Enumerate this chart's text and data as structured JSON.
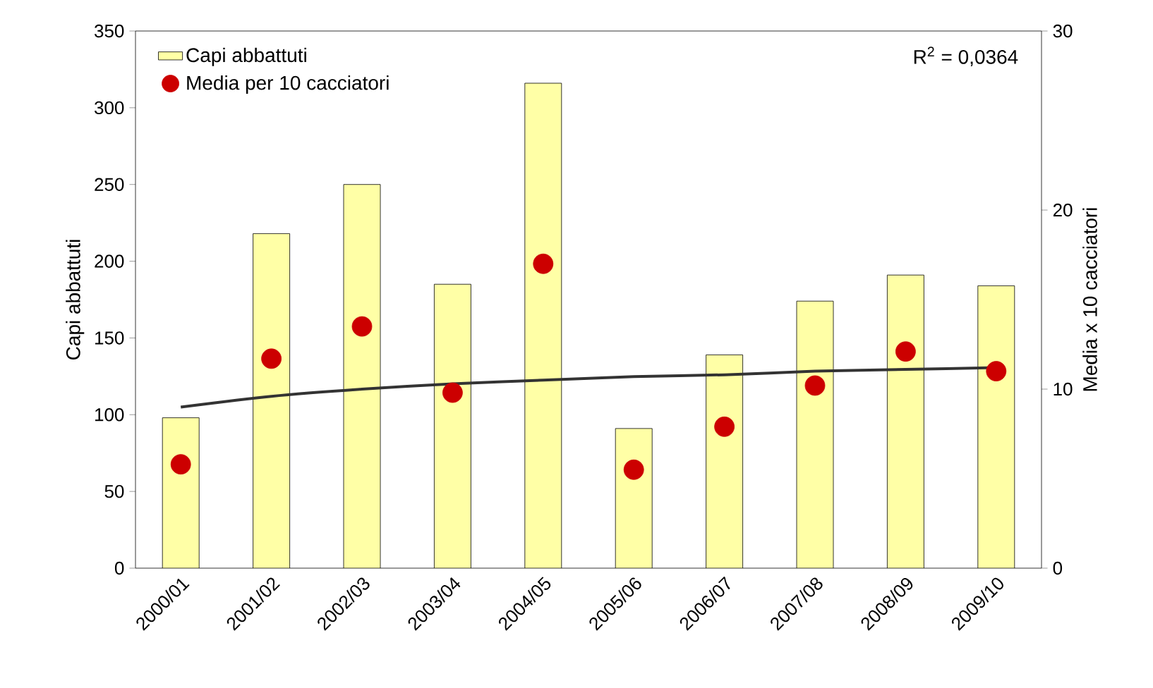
{
  "chart_data": {
    "type": "bar",
    "categories": [
      "2000/01",
      "2001/02",
      "2002/03",
      "2003/04",
      "2004/05",
      "2005/06",
      "2006/07",
      "2007/08",
      "2008/09",
      "2009/10"
    ],
    "series": [
      {
        "name": "Capi abbattuti",
        "type": "bar",
        "color": "#ffffa6",
        "values": [
          98,
          218,
          250,
          185,
          316,
          91,
          139,
          174,
          191,
          184
        ]
      },
      {
        "name": "Media per 10 cacciatori",
        "type": "scatter",
        "axis": "y2",
        "color": "#cc0000",
        "values": [
          5.8,
          11.7,
          13.5,
          9.8,
          17.0,
          5.5,
          7.9,
          10.2,
          12.1,
          11.0
        ]
      },
      {
        "type": "line",
        "axis": "y2",
        "color": "#333333",
        "values": [
          9.0,
          9.6,
          10.0,
          10.3,
          10.5,
          10.7,
          10.8,
          11.0,
          11.1,
          11.2
        ]
      }
    ],
    "ylabel": "Capi abbattuti",
    "y2label": "Media x 10 cacciatori",
    "ylim": [
      0,
      350
    ],
    "yticks": [
      0,
      50,
      100,
      150,
      200,
      250,
      300,
      350
    ],
    "y2lim": [
      0,
      30
    ],
    "y2ticks": [
      0,
      10,
      20,
      30
    ],
    "legend": "top left",
    "annotations": [
      "R$^{2}$ = 0,0364"
    ]
  }
}
